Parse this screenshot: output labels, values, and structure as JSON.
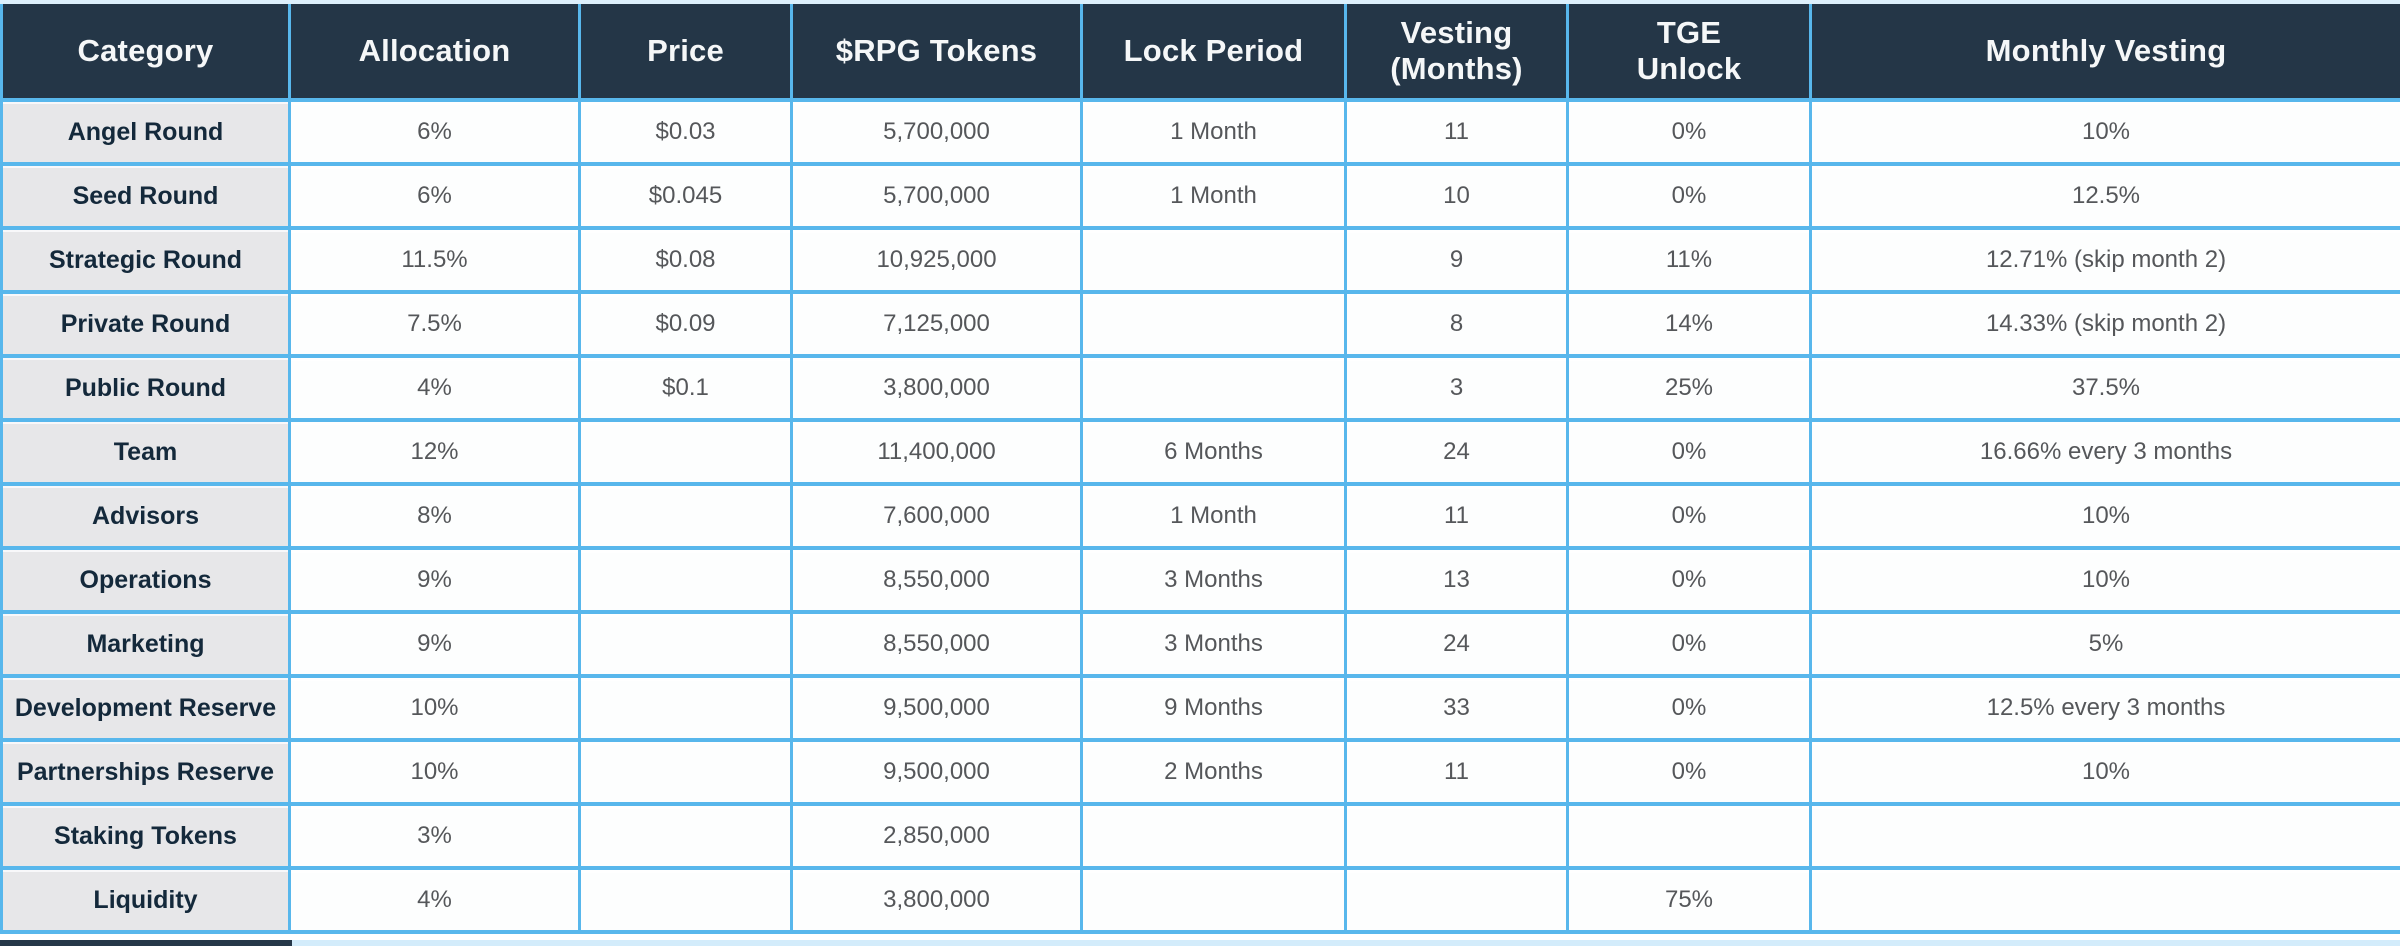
{
  "chart_data": {
    "type": "table",
    "title": "",
    "columns": [
      "Category",
      "Allocation",
      "Price",
      "$RPG Tokens",
      "Lock Period",
      "Vesting\n(Months)",
      "TGE\nUnlock",
      "Monthly Vesting"
    ],
    "rows": [
      [
        "Angel Round",
        "6%",
        "$0.03",
        "5,700,000",
        "1 Month",
        "11",
        "0%",
        "10%"
      ],
      [
        "Seed Round",
        "6%",
        "$0.045",
        "5,700,000",
        "1 Month",
        "10",
        "0%",
        "12.5%"
      ],
      [
        "Strategic Round",
        "11.5%",
        "$0.08",
        "10,925,000",
        "",
        "9",
        "11%",
        "12.71% (skip month 2)"
      ],
      [
        "Private Round",
        "7.5%",
        "$0.09",
        "7,125,000",
        "",
        "8",
        "14%",
        "14.33% (skip month 2)"
      ],
      [
        "Public Round",
        "4%",
        "$0.1",
        "3,800,000",
        "",
        "3",
        "25%",
        "37.5%"
      ],
      [
        "Team",
        "12%",
        "",
        "11,400,000",
        "6 Months",
        "24",
        "0%",
        "16.66% every 3 months"
      ],
      [
        "Advisors",
        "8%",
        "",
        "7,600,000",
        "1 Month",
        "11",
        "0%",
        "10%"
      ],
      [
        "Operations",
        "9%",
        "",
        "8,550,000",
        "3 Months",
        "13",
        "0%",
        "10%"
      ],
      [
        "Marketing",
        "9%",
        "",
        "8,550,000",
        "3 Months",
        "24",
        "0%",
        "5%"
      ],
      [
        "Development Reserve",
        "10%",
        "",
        "9,500,000",
        "9 Months",
        "33",
        "0%",
        "12.5% every 3 months"
      ],
      [
        "Partnerships Reserve",
        "10%",
        "",
        "9,500,000",
        "2 Months",
        "11",
        "0%",
        "10%"
      ],
      [
        "Staking Tokens",
        "3%",
        "",
        "2,850,000",
        "",
        "",
        "",
        ""
      ],
      [
        "Liquidity",
        "4%",
        "",
        "3,800,000",
        "",
        "",
        "75%",
        ""
      ]
    ]
  },
  "colors": {
    "header_background": "#243647",
    "header_text": "#f5f7f8",
    "category_cell_background": "#e7e7e9",
    "category_cell_text": "#14293b",
    "data_cell_text": "#55575a",
    "grid_border": "#58b7ec"
  }
}
